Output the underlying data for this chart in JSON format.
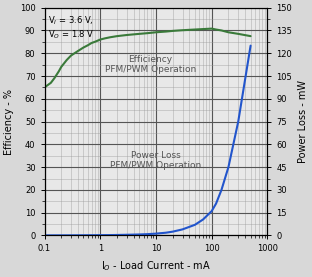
{
  "xlabel": "I$_O$ - Load Current - mA",
  "ylabel_left": "Efficiency - %",
  "ylabel_right": "Power Loss - mW",
  "annotation1": "V$_I$ = 3.6 V,\nV$_O$ = 1.8 V",
  "label_efficiency": "Efficiency\nPFM/PWM Operation",
  "label_power": "Power Loss\nPFM/PWM Operation",
  "xlim": [
    0.1,
    1000
  ],
  "ylim_left": [
    0,
    100
  ],
  "ylim_right": [
    0,
    150
  ],
  "yticks_left": [
    0,
    10,
    20,
    30,
    40,
    50,
    60,
    70,
    80,
    90,
    100
  ],
  "yticks_right": [
    0,
    15,
    30,
    45,
    60,
    75,
    90,
    105,
    120,
    135,
    150
  ],
  "efficiency_x": [
    0.1,
    0.13,
    0.15,
    0.18,
    0.2,
    0.25,
    0.3,
    0.4,
    0.5,
    0.6,
    0.7,
    0.8,
    1.0,
    1.2,
    1.5,
    2.0,
    3.0,
    5.0,
    7.0,
    10,
    15,
    20,
    30,
    50,
    70,
    100,
    120,
    150,
    200,
    300,
    500
  ],
  "efficiency_y": [
    65,
    67,
    69,
    72,
    74,
    77,
    79,
    81,
    82.5,
    83.5,
    84.5,
    85,
    86,
    86.5,
    87,
    87.5,
    88,
    88.5,
    88.8,
    89.2,
    89.5,
    89.8,
    90.1,
    90.4,
    90.6,
    90.8,
    90.4,
    90.0,
    89.2,
    88.5,
    87.5
  ],
  "power_x": [
    0.1,
    0.2,
    0.3,
    0.5,
    0.7,
    1.0,
    1.5,
    2.0,
    3.0,
    5.0,
    7.0,
    10,
    15,
    20,
    30,
    50,
    70,
    100,
    120,
    150,
    200,
    300,
    500
  ],
  "power_y": [
    0.05,
    0.07,
    0.09,
    0.12,
    0.15,
    0.2,
    0.25,
    0.32,
    0.45,
    0.65,
    0.85,
    1.2,
    1.8,
    2.5,
    4.0,
    7.0,
    10.5,
    16,
    21,
    30,
    45,
    75,
    125
  ],
  "efficiency_color": "#3a7a3a",
  "power_color": "#2255cc",
  "plot_bg_color": "#e8e8e8",
  "fig_bg_color": "#d8d8d8",
  "grid_major_color": "#555555",
  "grid_minor_color": "#999999",
  "text_color": "#555555",
  "fig_width": 3.12,
  "fig_height": 2.77,
  "dpi": 100
}
